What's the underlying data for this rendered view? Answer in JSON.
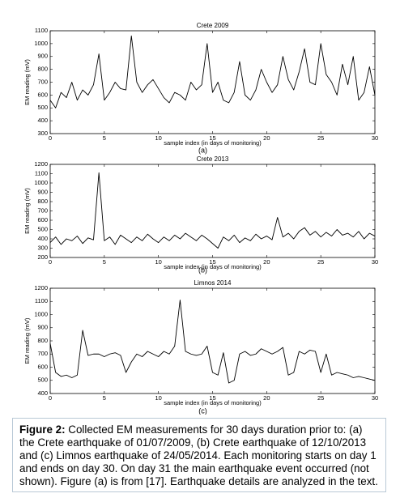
{
  "chart_data": [
    {
      "type": "line",
      "title": "Crete 2009",
      "panel_label": "(a)",
      "xlabel": "sample index (in days of monitoring)",
      "ylabel": "EM reading (mV)",
      "xlim": [
        0,
        30
      ],
      "xticks": [
        0,
        5,
        10,
        15,
        20,
        25,
        30
      ],
      "ylim": [
        300,
        1100
      ],
      "yticks": [
        300,
        400,
        500,
        600,
        700,
        800,
        900,
        1000,
        1100
      ],
      "color": "#000000",
      "x": [
        0,
        0.5,
        1,
        1.5,
        2,
        2.5,
        3,
        3.5,
        4,
        4.5,
        5,
        5.5,
        6,
        6.5,
        7,
        7.5,
        8,
        8.5,
        9,
        9.5,
        10,
        10.5,
        11,
        11.5,
        12,
        12.5,
        13,
        13.5,
        14,
        14.5,
        15,
        15.5,
        16,
        16.5,
        17,
        17.5,
        18,
        18.5,
        19,
        19.5,
        20,
        20.5,
        21,
        21.5,
        22,
        22.5,
        23,
        23.5,
        24,
        24.5,
        25,
        25.5,
        26,
        26.5,
        27,
        27.5,
        28,
        28.5,
        29,
        29.5,
        30
      ],
      "values": [
        560,
        500,
        620,
        580,
        700,
        560,
        640,
        600,
        680,
        920,
        560,
        620,
        700,
        650,
        640,
        1060,
        700,
        620,
        680,
        720,
        650,
        580,
        540,
        620,
        600,
        560,
        700,
        640,
        680,
        1000,
        620,
        700,
        560,
        540,
        620,
        860,
        600,
        560,
        640,
        800,
        700,
        620,
        680,
        900,
        720,
        640,
        780,
        960,
        700,
        680,
        1000,
        760,
        700,
        600,
        840,
        680,
        900,
        560,
        620,
        820,
        600
      ]
    },
    {
      "type": "line",
      "title": "Crete 2013",
      "panel_label": "(b)",
      "xlabel": "sample index (in days of monitoring)",
      "ylabel": "EM reading (mV)",
      "xlim": [
        0,
        30
      ],
      "xticks": [
        0,
        5,
        10,
        15,
        20,
        25,
        30
      ],
      "ylim": [
        200,
        1200
      ],
      "yticks": [
        200,
        300,
        400,
        500,
        600,
        700,
        800,
        900,
        1000,
        1100,
        1200
      ],
      "color": "#000000",
      "x": [
        0,
        0.5,
        1,
        1.5,
        2,
        2.5,
        3,
        3.5,
        4,
        4.5,
        5,
        5.5,
        6,
        6.5,
        7,
        7.5,
        8,
        8.5,
        9,
        9.5,
        10,
        10.5,
        11,
        11.5,
        12,
        12.5,
        13,
        13.5,
        14,
        14.5,
        15,
        15.5,
        16,
        16.5,
        17,
        17.5,
        18,
        18.5,
        19,
        19.5,
        20,
        20.5,
        21,
        21.5,
        22,
        22.5,
        23,
        23.5,
        24,
        24.5,
        25,
        25.5,
        26,
        26.5,
        27,
        27.5,
        28,
        28.5,
        29,
        29.5,
        30
      ],
      "values": [
        360,
        420,
        340,
        400,
        380,
        430,
        350,
        410,
        390,
        1110,
        380,
        420,
        340,
        440,
        400,
        360,
        420,
        380,
        450,
        400,
        360,
        420,
        380,
        440,
        400,
        460,
        420,
        380,
        440,
        400,
        350,
        300,
        420,
        380,
        440,
        360,
        410,
        380,
        450,
        400,
        430,
        390,
        630,
        420,
        460,
        400,
        480,
        520,
        440,
        480,
        420,
        470,
        430,
        500,
        440,
        460,
        420,
        480,
        400,
        460,
        430
      ]
    },
    {
      "type": "line",
      "title": "Limnos 2014",
      "panel_label": "(c)",
      "xlabel": "sample index (in days of monitoring)",
      "ylabel": "EM reading (mV)",
      "xlim": [
        0,
        30
      ],
      "xticks": [
        0,
        5,
        10,
        15,
        20,
        25,
        30
      ],
      "ylim": [
        400,
        1200
      ],
      "yticks": [
        400,
        500,
        600,
        700,
        800,
        900,
        1000,
        1100,
        1200
      ],
      "color": "#000000",
      "x": [
        0,
        0.5,
        1,
        1.5,
        2,
        2.5,
        3,
        3.5,
        4,
        4.5,
        5,
        5.5,
        6,
        6.5,
        7,
        7.5,
        8,
        8.5,
        9,
        9.5,
        10,
        10.5,
        11,
        11.5,
        12,
        12.5,
        13,
        13.5,
        14,
        14.5,
        15,
        15.5,
        16,
        16.5,
        17,
        17.5,
        18,
        18.5,
        19,
        19.5,
        20,
        20.5,
        21,
        21.5,
        22,
        22.5,
        23,
        23.5,
        24,
        24.5,
        25,
        25.5,
        26,
        26.5,
        27,
        27.5,
        28,
        28.5,
        29,
        29.5,
        30
      ],
      "values": [
        780,
        560,
        530,
        540,
        520,
        540,
        880,
        690,
        700,
        700,
        680,
        700,
        710,
        690,
        560,
        640,
        700,
        680,
        720,
        700,
        680,
        720,
        700,
        760,
        1110,
        720,
        700,
        690,
        700,
        760,
        560,
        540,
        710,
        480,
        500,
        700,
        720,
        690,
        700,
        740,
        720,
        700,
        720,
        750,
        540,
        560,
        720,
        700,
        730,
        720,
        560,
        700,
        540,
        560,
        550,
        540,
        520,
        530,
        520,
        510,
        500
      ]
    }
  ],
  "caption": {
    "label": "Figure 2:",
    "text": "Collected EM measurements for 30 days duration prior to: (a) the Crete earthquake of 01/07/2009, (b) Crete earthquake of 12/10/2013 and (c) Limnos earthquake of 24/05/2014. Each monitoring starts on day 1 and ends on day 30. On day 31 the main earthquake event occurred (not shown). Figure (a) is from [17]. Earthquake details are analyzed in the text."
  }
}
